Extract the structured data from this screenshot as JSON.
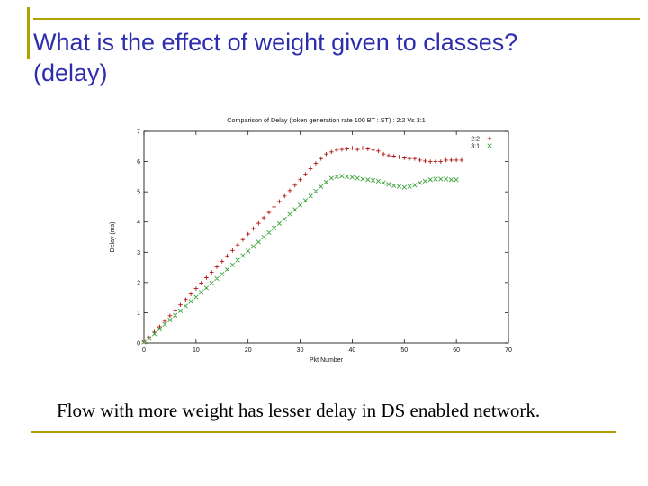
{
  "slide": {
    "title_line1": "What is the effect of weight given to classes?",
    "title_line2": "(delay)",
    "title_color": "#2d2dad",
    "accent_color": "#b0a000",
    "caption": "Flow with more weight has lesser delay in DS enabled network."
  },
  "chart_data": {
    "type": "scatter",
    "title": "Comparison of Delay (token generation rate 100 BT : ST) : 2:2 Vs 3:1",
    "xlabel": "Pkt Number",
    "ylabel": "Delay (ms)",
    "xlim": [
      0,
      70
    ],
    "ylim": [
      0,
      7
    ],
    "xticks": [
      0,
      10,
      20,
      30,
      40,
      50,
      60,
      70
    ],
    "yticks": [
      0,
      1,
      2,
      3,
      4,
      5,
      6,
      7
    ],
    "grid": false,
    "legend_position": "top-right",
    "series": [
      {
        "name": "2:2",
        "marker": "plus",
        "color": "#b01515",
        "points": [
          [
            0,
            0.05
          ],
          [
            1,
            0.18
          ],
          [
            2,
            0.36
          ],
          [
            3,
            0.54
          ],
          [
            4,
            0.72
          ],
          [
            5,
            0.9
          ],
          [
            6,
            1.08
          ],
          [
            7,
            1.26
          ],
          [
            8,
            1.44
          ],
          [
            9,
            1.62
          ],
          [
            10,
            1.8
          ],
          [
            11,
            1.98
          ],
          [
            12,
            2.16
          ],
          [
            13,
            2.34
          ],
          [
            14,
            2.52
          ],
          [
            15,
            2.7
          ],
          [
            16,
            2.88
          ],
          [
            17,
            3.06
          ],
          [
            18,
            3.24
          ],
          [
            19,
            3.42
          ],
          [
            20,
            3.6
          ],
          [
            21,
            3.78
          ],
          [
            22,
            3.96
          ],
          [
            23,
            4.14
          ],
          [
            24,
            4.32
          ],
          [
            25,
            4.5
          ],
          [
            26,
            4.68
          ],
          [
            27,
            4.86
          ],
          [
            28,
            5.04
          ],
          [
            29,
            5.22
          ],
          [
            30,
            5.4
          ],
          [
            31,
            5.58
          ],
          [
            32,
            5.76
          ],
          [
            33,
            5.94
          ],
          [
            34,
            6.1
          ],
          [
            35,
            6.25
          ],
          [
            36,
            6.32
          ],
          [
            37,
            6.38
          ],
          [
            38,
            6.4
          ],
          [
            39,
            6.42
          ],
          [
            40,
            6.45
          ],
          [
            41,
            6.4
          ],
          [
            42,
            6.45
          ],
          [
            43,
            6.42
          ],
          [
            44,
            6.38
          ],
          [
            45,
            6.35
          ],
          [
            46,
            6.25
          ],
          [
            47,
            6.2
          ],
          [
            48,
            6.18
          ],
          [
            49,
            6.15
          ],
          [
            50,
            6.12
          ],
          [
            51,
            6.1
          ],
          [
            52,
            6.1
          ],
          [
            53,
            6.05
          ],
          [
            54,
            6.02
          ],
          [
            55,
            6.0
          ],
          [
            56,
            6.0
          ],
          [
            57,
            6.0
          ],
          [
            58,
            6.05
          ],
          [
            59,
            6.05
          ],
          [
            60,
            6.05
          ],
          [
            61,
            6.05
          ]
        ]
      },
      {
        "name": "3:1",
        "marker": "cross",
        "color": "#3aa43a",
        "points": [
          [
            0,
            0.03
          ],
          [
            1,
            0.15
          ],
          [
            2,
            0.3
          ],
          [
            3,
            0.46
          ],
          [
            4,
            0.61
          ],
          [
            5,
            0.76
          ],
          [
            6,
            0.91
          ],
          [
            7,
            1.06
          ],
          [
            8,
            1.22
          ],
          [
            9,
            1.37
          ],
          [
            10,
            1.52
          ],
          [
            11,
            1.67
          ],
          [
            12,
            1.82
          ],
          [
            13,
            1.98
          ],
          [
            14,
            2.13
          ],
          [
            15,
            2.28
          ],
          [
            16,
            2.43
          ],
          [
            17,
            2.58
          ],
          [
            18,
            2.74
          ],
          [
            19,
            2.89
          ],
          [
            20,
            3.04
          ],
          [
            21,
            3.19
          ],
          [
            22,
            3.34
          ],
          [
            23,
            3.5
          ],
          [
            24,
            3.65
          ],
          [
            25,
            3.8
          ],
          [
            26,
            3.95
          ],
          [
            27,
            4.1
          ],
          [
            28,
            4.26
          ],
          [
            29,
            4.41
          ],
          [
            30,
            4.56
          ],
          [
            31,
            4.71
          ],
          [
            32,
            4.86
          ],
          [
            33,
            5.02
          ],
          [
            34,
            5.17
          ],
          [
            35,
            5.32
          ],
          [
            36,
            5.45
          ],
          [
            37,
            5.5
          ],
          [
            38,
            5.52
          ],
          [
            39,
            5.5
          ],
          [
            40,
            5.48
          ],
          [
            41,
            5.45
          ],
          [
            42,
            5.42
          ],
          [
            43,
            5.4
          ],
          [
            44,
            5.38
          ],
          [
            45,
            5.35
          ],
          [
            46,
            5.3
          ],
          [
            47,
            5.25
          ],
          [
            48,
            5.2
          ],
          [
            49,
            5.18
          ],
          [
            50,
            5.15
          ],
          [
            51,
            5.18
          ],
          [
            52,
            5.22
          ],
          [
            53,
            5.3
          ],
          [
            54,
            5.35
          ],
          [
            55,
            5.4
          ],
          [
            56,
            5.42
          ],
          [
            57,
            5.42
          ],
          [
            58,
            5.42
          ],
          [
            59,
            5.4
          ],
          [
            60,
            5.4
          ]
        ]
      }
    ]
  }
}
